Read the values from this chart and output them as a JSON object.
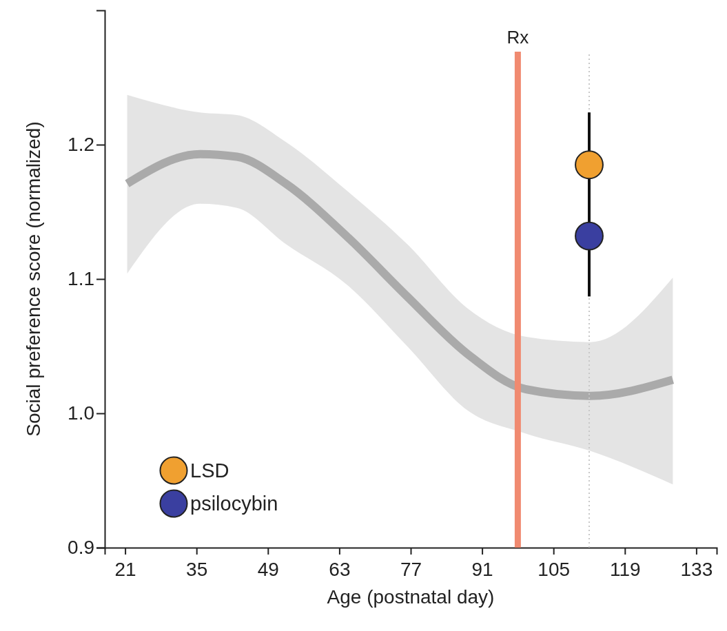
{
  "chart_data": {
    "type": "line",
    "xlabel": "Age (postnatal day)",
    "ylabel": "Social preference score (normalized)",
    "xlim": [
      17,
      137
    ],
    "xticks": [
      21,
      35,
      49,
      63,
      77,
      91,
      105,
      119,
      133
    ],
    "ylim": [
      0.9,
      1.3
    ],
    "yticks": [
      0.9,
      {
        "value": 1,
        "label": "1.0"
      },
      1.1,
      1.2
    ],
    "grid": false,
    "legend": "bottom left",
    "ref_lines": [
      {
        "axis": "x",
        "value": 98,
        "label": "Rx",
        "color": "#f08a70",
        "line_style": "solid"
      },
      {
        "axis": "x",
        "value": 112,
        "label": null,
        "color": "#c8c8c8",
        "line_style": "dotted"
      }
    ],
    "series": [
      {
        "color": "#aaaaaa",
        "x": [
          21.4,
          35.7,
          42.9,
          52.5,
          64.4,
          76.3,
          88.2,
          99.5,
          112.2,
          128.4
        ],
        "values": [
          1.171,
          1.193,
          1.191,
          1.171,
          1.132,
          1.087,
          1.044,
          1.018,
          1.013,
          1.025
        ],
        "upper": [
          1.237,
          1.224,
          1.222,
          1.202,
          1.166,
          1.126,
          1.078,
          1.057,
          1.053,
          1.101
        ],
        "lower": [
          1.104,
          1.156,
          1.153,
          1.126,
          1.096,
          1.05,
          1.002,
          0.985,
          0.972,
          0.947
        ]
      },
      {
        "type": "scatter",
        "marker": "circle",
        "name": "LSD",
        "color": "#f0a030",
        "x": [
          112
        ],
        "values": [
          1.185
        ],
        "errors": [
          [
            1.145,
            1.224
          ]
        ]
      },
      {
        "type": "scatter",
        "marker": "circle",
        "name": "psilocybin",
        "color": "#3a3fa0",
        "x": [
          112
        ],
        "values": [
          1.132
        ],
        "errors": [
          [
            1.087,
            1.175
          ]
        ]
      }
    ]
  }
}
